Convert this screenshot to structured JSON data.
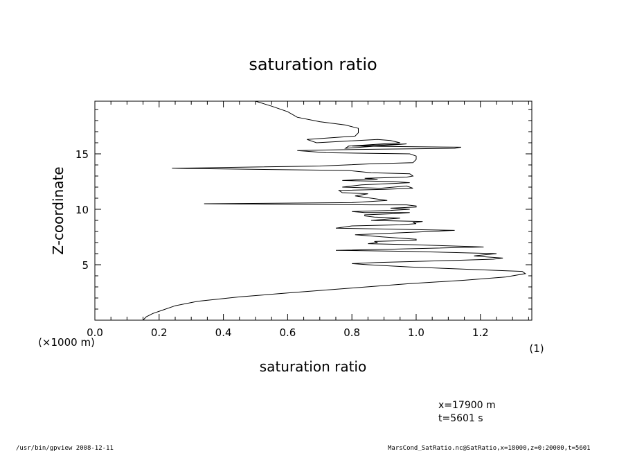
{
  "chart_data": {
    "type": "line",
    "title": "saturation ratio",
    "xlabel": "saturation ratio",
    "xunit": "(1)",
    "ylabel": "Z-coordinate",
    "yunit": "(×1000 m)",
    "xlim": [
      0.0,
      1.36
    ],
    "ylim": [
      0,
      19.75
    ],
    "xticks": [
      "0.0",
      "0.2",
      "0.4",
      "0.6",
      "0.8",
      "1.0",
      "1.2"
    ],
    "xtick_values": [
      0.0,
      0.2,
      0.4,
      0.6,
      0.8,
      1.0,
      1.2
    ],
    "yticks": [
      "5",
      "10",
      "15"
    ],
    "ytick_values": [
      5,
      10,
      15
    ],
    "grid": false,
    "series": [
      {
        "x": [
          0.15,
          0.16,
          0.18,
          0.21,
          0.25,
          0.32,
          0.45,
          0.62,
          0.8,
          0.98,
          1.15,
          1.28,
          1.34,
          1.33,
          1.15,
          0.98,
          0.85,
          0.8,
          0.88,
          1.0,
          1.13,
          1.24,
          1.27,
          1.22,
          1.18,
          1.25,
          0.98,
          0.75,
          0.92,
          1.21,
          1.0,
          0.85,
          0.88,
          0.87,
          1.0,
          1.0,
          0.9,
          0.81,
          1.12,
          0.75,
          0.8,
          0.95,
          1.0,
          0.99,
          1.02,
          0.86,
          0.95,
          0.87,
          0.84,
          0.84,
          0.93,
          0.98,
          0.84,
          0.8,
          0.92,
          0.98,
          0.92,
          1.0,
          1.0,
          0.97,
          0.86,
          0.34,
          0.8,
          0.91,
          0.81,
          0.85,
          0.77,
          0.76,
          0.9,
          0.99,
          0.97,
          0.89,
          0.77,
          0.83,
          0.98,
          0.93,
          0.77,
          0.85,
          0.88,
          0.84,
          0.97,
          0.99,
          0.98,
          0.86,
          0.79,
          0.24,
          0.7,
          0.86,
          0.99,
          1.0,
          1.0,
          0.98,
          0.72,
          0.63,
          0.82,
          1.12,
          1.14,
          0.8,
          0.97,
          0.78,
          0.79,
          0.95,
          0.92,
          0.88,
          0.69,
          0.66,
          0.81,
          0.82,
          0.82,
          0.78,
          0.7,
          0.63,
          0.6,
          0.55,
          0.5
        ],
        "y": [
          0.0,
          0.3,
          0.6,
          0.9,
          1.3,
          1.7,
          2.1,
          2.5,
          2.9,
          3.3,
          3.6,
          3.9,
          4.2,
          4.4,
          4.6,
          4.8,
          5.0,
          5.1,
          5.2,
          5.3,
          5.4,
          5.5,
          5.6,
          5.7,
          5.8,
          6.0,
          6.2,
          6.3,
          6.4,
          6.6,
          6.8,
          6.9,
          7.0,
          7.1,
          7.2,
          7.3,
          7.5,
          7.7,
          8.1,
          8.3,
          8.5,
          8.6,
          8.7,
          8.8,
          8.9,
          9.0,
          9.2,
          9.3,
          9.4,
          9.5,
          9.6,
          9.7,
          9.7,
          9.8,
          9.9,
          10.0,
          10.1,
          10.2,
          10.3,
          10.4,
          10.4,
          10.5,
          10.6,
          10.8,
          11.2,
          11.4,
          11.5,
          11.7,
          11.8,
          11.9,
          12.1,
          11.9,
          12.0,
          12.2,
          12.4,
          12.5,
          12.6,
          12.7,
          12.7,
          12.8,
          12.9,
          13.0,
          13.2,
          13.3,
          13.5,
          13.7,
          13.9,
          14.1,
          14.2,
          14.5,
          14.8,
          15.0,
          15.1,
          15.3,
          15.4,
          15.5,
          15.6,
          15.7,
          15.9,
          15.5,
          15.7,
          16.0,
          16.2,
          16.3,
          16.0,
          16.3,
          16.6,
          16.9,
          17.3,
          17.6,
          17.9,
          18.3,
          18.8,
          19.3,
          19.75
        ]
      }
    ]
  },
  "annotations": {
    "x_position": "x=17900 m",
    "time": "t=5601 s"
  },
  "footer": {
    "left": "/usr/bin/gpview   2008-12-11",
    "right": "MarsCond_SatRatio.nc@SatRatio,x=18000,z=0:20000,t=5601"
  }
}
